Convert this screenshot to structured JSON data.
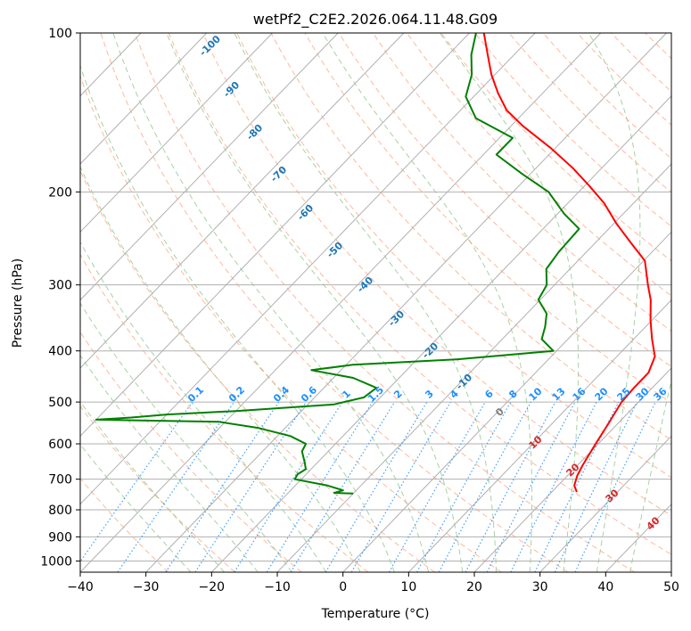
{
  "chart_data": {
    "type": "line",
    "title": "wetPf2_C2E2.2026.064.11.48.G09",
    "xlabel": "Temperature (°C)",
    "ylabel": "Pressure (hPa)",
    "xlim": [
      -40,
      50
    ],
    "ylim": [
      1050,
      100
    ],
    "y_scale": "log",
    "x_ticks": [
      -40,
      -30,
      -20,
      -10,
      0,
      10,
      20,
      30,
      40,
      50
    ],
    "y_ticks": [
      100,
      200,
      300,
      400,
      500,
      600,
      700,
      800,
      900,
      1000
    ],
    "grid": true,
    "series": [
      {
        "color": "#ff0000",
        "points": [
          {
            "p": 740,
            "t": 23.8
          },
          {
            "p": 720,
            "t": 22.5
          },
          {
            "p": 690,
            "t": 21.5
          },
          {
            "p": 660,
            "t": 20.8
          },
          {
            "p": 600,
            "t": 19.6
          },
          {
            "p": 550,
            "t": 18.6
          },
          {
            "p": 500,
            "t": 17.4
          },
          {
            "p": 470,
            "t": 17.2
          },
          {
            "p": 440,
            "t": 17.2
          },
          {
            "p": 410,
            "t": 15.8
          },
          {
            "p": 380,
            "t": 12.8
          },
          {
            "p": 350,
            "t": 9.8
          },
          {
            "p": 320,
            "t": 6.8
          },
          {
            "p": 300,
            "t": 4.2
          },
          {
            "p": 270,
            "t": 0.2
          },
          {
            "p": 250,
            "t": -4.5
          },
          {
            "p": 230,
            "t": -9.5
          },
          {
            "p": 210,
            "t": -14.5
          },
          {
            "p": 195,
            "t": -19.2
          },
          {
            "p": 180,
            "t": -24.5
          },
          {
            "p": 165,
            "t": -30.8
          },
          {
            "p": 150,
            "t": -38.2
          },
          {
            "p": 140,
            "t": -43.0
          },
          {
            "p": 130,
            "t": -46.8
          },
          {
            "p": 120,
            "t": -50.5
          },
          {
            "p": 110,
            "t": -54.0
          },
          {
            "p": 100,
            "t": -57.8
          }
        ]
      },
      {
        "color": "#008000",
        "points": [
          {
            "p": 745,
            "t": -10.0
          },
          {
            "p": 743,
            "t": -13.0
          },
          {
            "p": 735,
            "t": -12.0
          },
          {
            "p": 720,
            "t": -15.0
          },
          {
            "p": 700,
            "t": -21.0
          },
          {
            "p": 685,
            "t": -21.3
          },
          {
            "p": 670,
            "t": -20.8
          },
          {
            "p": 650,
            "t": -22.0
          },
          {
            "p": 620,
            "t": -24.0
          },
          {
            "p": 600,
            "t": -24.5
          },
          {
            "p": 580,
            "t": -28.0
          },
          {
            "p": 560,
            "t": -34.0
          },
          {
            "p": 545,
            "t": -41.0
          },
          {
            "p": 540,
            "t": -60.0
          },
          {
            "p": 535,
            "t": -55.0
          },
          {
            "p": 528,
            "t": -50.0
          },
          {
            "p": 520,
            "t": -40.0
          },
          {
            "p": 505,
            "t": -26.0
          },
          {
            "p": 490,
            "t": -22.5
          },
          {
            "p": 470,
            "t": -22.0
          },
          {
            "p": 450,
            "t": -27.0
          },
          {
            "p": 435,
            "t": -34.5
          },
          {
            "p": 425,
            "t": -29.0
          },
          {
            "p": 415,
            "t": -14.0
          },
          {
            "p": 400,
            "t": -0.5
          },
          {
            "p": 380,
            "t": -4.0
          },
          {
            "p": 360,
            "t": -5.3
          },
          {
            "p": 340,
            "t": -7.0
          },
          {
            "p": 320,
            "t": -10.3
          },
          {
            "p": 300,
            "t": -11.2
          },
          {
            "p": 280,
            "t": -13.6
          },
          {
            "p": 260,
            "t": -14.2
          },
          {
            "p": 235,
            "t": -14.5
          },
          {
            "p": 220,
            "t": -19.0
          },
          {
            "p": 200,
            "t": -24.6
          },
          {
            "p": 185,
            "t": -31.2
          },
          {
            "p": 170,
            "t": -38.0
          },
          {
            "p": 158,
            "t": -38.0
          },
          {
            "p": 145,
            "t": -46.5
          },
          {
            "p": 132,
            "t": -51.2
          },
          {
            "p": 120,
            "t": -53.5
          },
          {
            "p": 110,
            "t": -56.5
          },
          {
            "p": 100,
            "t": -59.0
          }
        ]
      }
    ],
    "dry_adiabat_labels": [
      "-100",
      "-90",
      "-80",
      "-70",
      "-60",
      "-50",
      "-40",
      "-30",
      "-20",
      "-10"
    ],
    "mixing_ratio_labels": [
      "0.1",
      "0.2",
      "0.4",
      "0.6",
      "1",
      "1.5",
      "2",
      "3",
      "4",
      "6",
      "8",
      "10",
      "13",
      "16",
      "20",
      "25",
      "30",
      "36"
    ],
    "moist_adiabat_labels": [
      "0",
      "10",
      "20",
      "30",
      "40"
    ]
  }
}
